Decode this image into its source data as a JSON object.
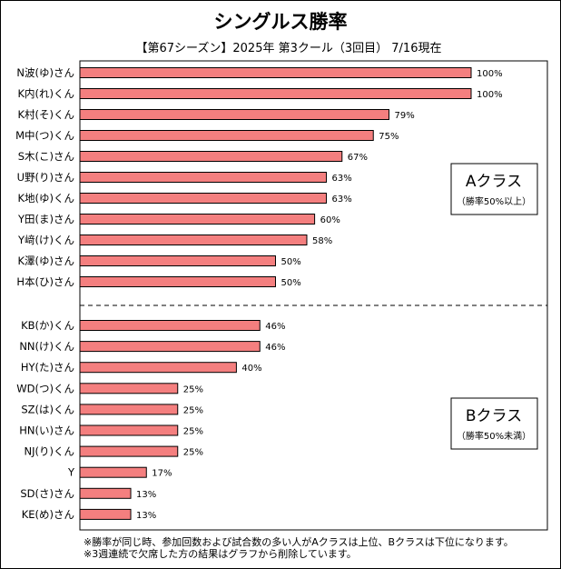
{
  "chart_data": {
    "type": "bar",
    "orientation": "horizontal",
    "title": "シングルス勝率",
    "subtitle": "【第67シーズン】2025年 第3クール（3回目） 7/16現在",
    "xlim": [
      0,
      100
    ],
    "grid": false,
    "bar_color": "#f47f7f",
    "bar_border": "#000000",
    "categories": [
      "N波(ゆ)さん",
      "K内(れ)くん",
      "K村(そ)くん",
      "M中(つ)くん",
      "S木(こ)さん",
      "U野(り)さん",
      "K地(ゆ)くん",
      "Y田(ま)さん",
      "Y﨑(け)くん",
      "K澤(ゆ)さん",
      "H本(ひ)さん",
      "KB(か)くん",
      "NN(け)くん",
      "HY(た)さん",
      "WD(つ)くん",
      "SZ(は)くん",
      "HN(い)さん",
      "NJ(り)くん",
      "Y",
      "SD(さ)さん",
      "KE(め)さん"
    ],
    "values": [
      100,
      100,
      79,
      75,
      67,
      63,
      63,
      60,
      58,
      50,
      50,
      46,
      46,
      40,
      25,
      25,
      25,
      25,
      17,
      13,
      13
    ],
    "value_labels": [
      "100%",
      "100%",
      "79%",
      "75%",
      "67%",
      "63%",
      "63%",
      "60%",
      "58%",
      "50%",
      "50%",
      "46%",
      "46%",
      "40%",
      "25%",
      "25%",
      "25%",
      "25%",
      "17%",
      "13%",
      "13%"
    ],
    "class_a": {
      "title": "Aクラス",
      "note": "（勝率50%以上）",
      "count": 11
    },
    "class_b": {
      "title": "Bクラス",
      "note": "（勝率50%未満）",
      "count": 10
    }
  },
  "notes": [
    "※勝率が同じ時、参加回数および試合数の多い人がAクラスは上位、Bクラスは下位になります。",
    "※3週連続で欠席した方の結果はグラフから削除しています。"
  ]
}
